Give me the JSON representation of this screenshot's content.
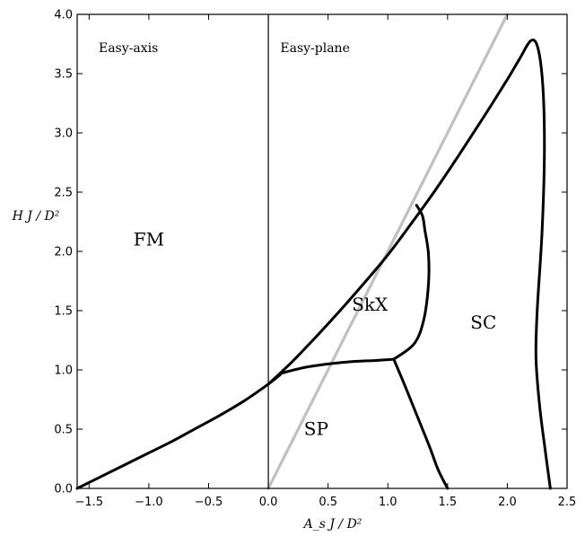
{
  "chart_data": {
    "type": "line",
    "xlabel": "A_s J / D²",
    "ylabel": "H J / D²",
    "xlim": [
      -1.6,
      2.5
    ],
    "ylim": [
      0,
      4.0
    ],
    "grid": false,
    "x_ticks": [
      {
        "value": -1.5,
        "label": "−1.5"
      },
      {
        "value": -1.0,
        "label": "−1.0"
      },
      {
        "value": -0.5,
        "label": "−0.5"
      },
      {
        "value": 0.0,
        "label": "0.0"
      },
      {
        "value": 0.5,
        "label": "0.5"
      },
      {
        "value": 1.0,
        "label": "1.0"
      },
      {
        "value": 1.5,
        "label": "1.5"
      },
      {
        "value": 2.0,
        "label": "2.0"
      },
      {
        "value": 2.5,
        "label": "2.5"
      }
    ],
    "y_ticks": [
      {
        "value": 0.0,
        "label": "0.0"
      },
      {
        "value": 0.5,
        "label": "0.5"
      },
      {
        "value": 1.0,
        "label": "1.0"
      },
      {
        "value": 1.5,
        "label": "1.5"
      },
      {
        "value": 2.0,
        "label": "2.0"
      },
      {
        "value": 2.5,
        "label": "2.5"
      },
      {
        "value": 3.0,
        "label": "3.0"
      },
      {
        "value": 3.5,
        "label": "3.5"
      },
      {
        "value": 4.0,
        "label": "4.0"
      }
    ],
    "region_labels": [
      {
        "text": "FM",
        "x": -1.0,
        "y": 2.05
      },
      {
        "text": "SkX",
        "x": 0.85,
        "y": 1.5
      },
      {
        "text": "SC",
        "x": 1.8,
        "y": 1.35
      },
      {
        "text": "SP",
        "x": 0.4,
        "y": 0.45
      }
    ],
    "annotations": [
      {
        "text": "Easy-axis",
        "x": -1.42,
        "y": 3.68
      },
      {
        "text": "Easy-plane",
        "x": 0.1,
        "y": 3.68
      }
    ],
    "series": [
      {
        "color": "#000000",
        "x": [
          -1.6,
          -1.4,
          -1.2,
          -1.0,
          -0.8,
          -0.6,
          -0.4,
          -0.2,
          0.0,
          0.1
        ],
        "y": [
          0.0,
          0.1,
          0.2,
          0.3,
          0.4,
          0.51,
          0.62,
          0.74,
          0.88,
          0.96
        ]
      },
      {
        "color": "#000000",
        "x": [
          0.0,
          0.2,
          0.4,
          0.6,
          0.8,
          1.0,
          1.2,
          1.4,
          1.6,
          1.8,
          2.0,
          2.1,
          2.2,
          2.26,
          2.3,
          2.31,
          2.29,
          2.25,
          2.24,
          2.27,
          2.32,
          2.36
        ],
        "y": [
          0.88,
          1.07,
          1.28,
          1.5,
          1.73,
          1.97,
          2.24,
          2.52,
          2.82,
          3.13,
          3.45,
          3.62,
          3.78,
          3.7,
          3.35,
          2.8,
          2.15,
          1.5,
          1.1,
          0.7,
          0.3,
          0.0
        ]
      },
      {
        "color": "#000000",
        "x": [
          0.1,
          0.3,
          0.5,
          0.7,
          0.9,
          1.05
        ],
        "y": [
          0.97,
          1.02,
          1.05,
          1.07,
          1.08,
          1.09
        ]
      },
      {
        "color": "#000000",
        "x": [
          1.05,
          1.22,
          1.3,
          1.34,
          1.34,
          1.31,
          1.29,
          1.24
        ],
        "y": [
          1.09,
          1.22,
          1.42,
          1.72,
          1.98,
          2.18,
          2.3,
          2.39
        ]
      },
      {
        "color": "#000000",
        "x": [
          1.05,
          1.15,
          1.25,
          1.35,
          1.42,
          1.5
        ],
        "y": [
          1.09,
          0.85,
          0.6,
          0.35,
          0.16,
          0.0
        ]
      },
      {
        "color": "#c0c0c0",
        "x": [
          0.0,
          2.0
        ],
        "y": [
          0.0,
          4.0
        ]
      }
    ]
  }
}
